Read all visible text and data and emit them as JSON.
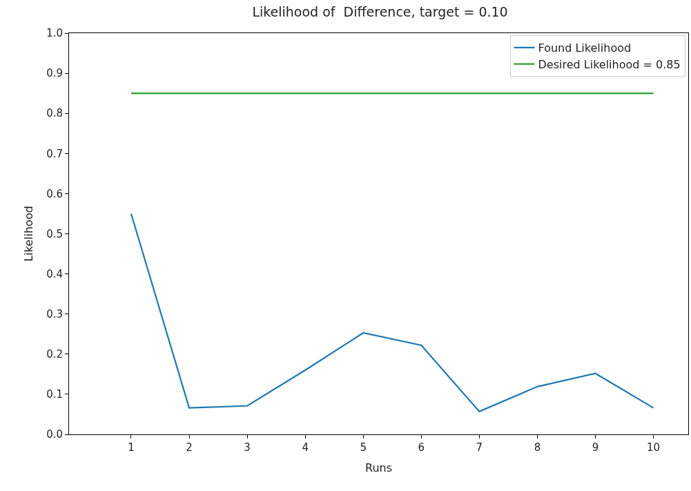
{
  "chart_data": {
    "type": "line",
    "title": "Likelihood of  Difference, target = 0.10",
    "xlabel": "Runs",
    "ylabel": "Likelihood",
    "x": [
      1,
      2,
      3,
      4,
      5,
      6,
      7,
      8,
      9,
      10
    ],
    "series": [
      {
        "name": "Found Likelihood",
        "color": "#1f77b4",
        "values": [
          0.55,
          0.066,
          0.071,
          0.16,
          0.253,
          0.222,
          0.057,
          0.119,
          0.152,
          0.066
        ]
      },
      {
        "name": "Desired Likelihood = 0.85",
        "color": "#2ca02c",
        "x": [
          1,
          10
        ],
        "values": [
          0.85,
          0.85
        ]
      }
    ],
    "xlim": [
      -0.07,
      10.6
    ],
    "xticks": [
      1,
      2,
      3,
      4,
      5,
      6,
      7,
      8,
      9,
      10
    ],
    "ylim": [
      0,
      1
    ],
    "yticks": [
      {
        "value": 0,
        "label": "0.0"
      },
      0.1,
      0.2,
      0.3,
      0.4,
      0.5,
      0.6,
      0.7,
      0.8,
      0.9,
      {
        "value": 1,
        "label": "1.0"
      }
    ],
    "grid": false,
    "legend": "top right",
    "marker": "none",
    "line_style": "solid"
  }
}
